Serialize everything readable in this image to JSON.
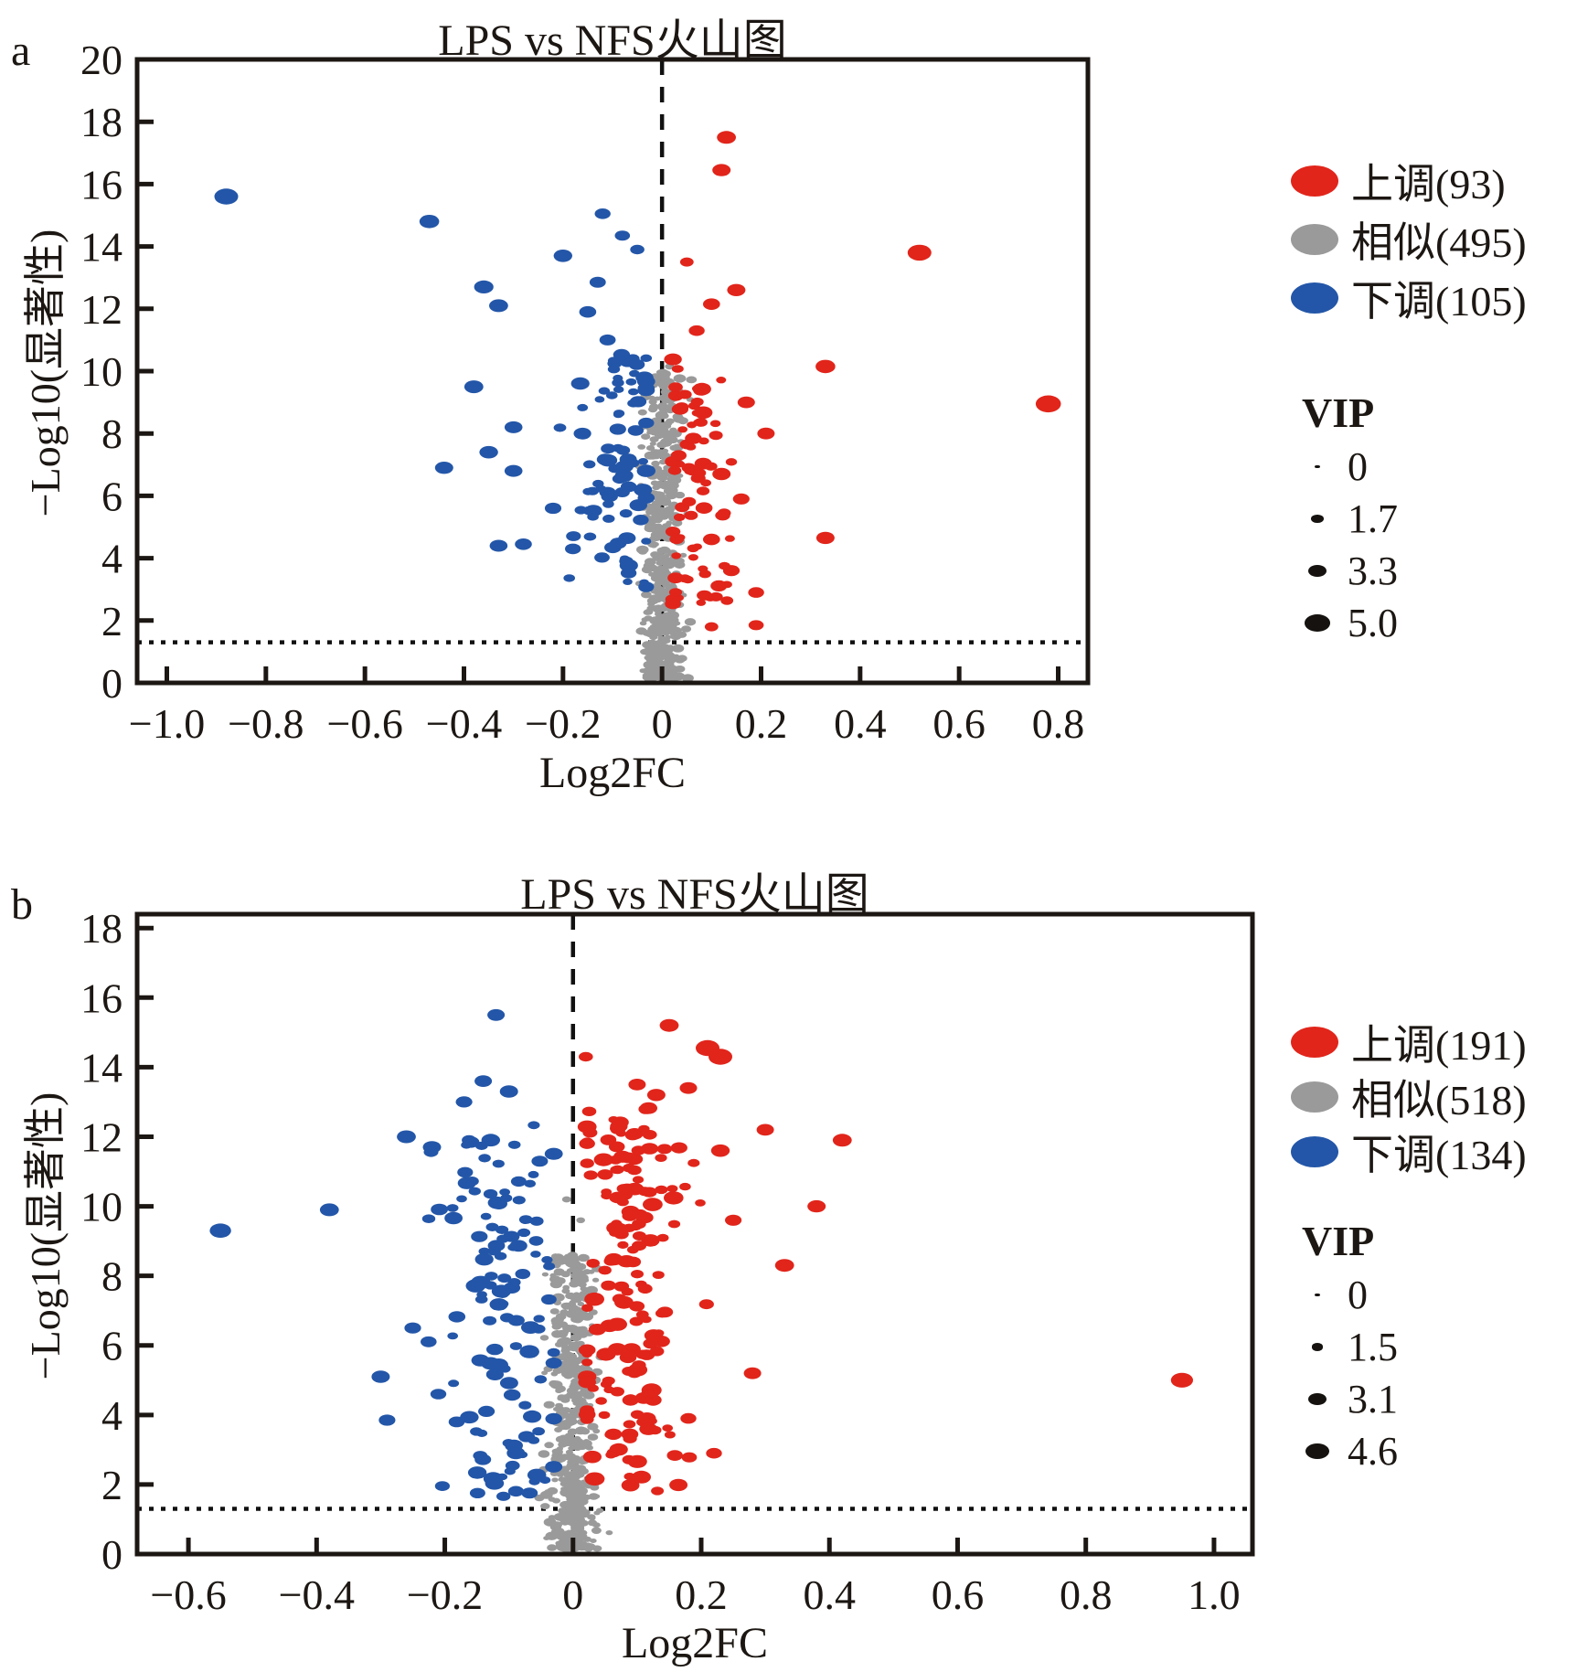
{
  "figure": {
    "panels": [
      {
        "panel_label": "a",
        "title": "LPS vs NFS火山图",
        "xlabel": "Log2FC",
        "ylabel": "−Log10(显著性)",
        "legend": {
          "items": [
            {
              "key": "up",
              "label": "上调(93)",
              "color": "#e1251b"
            },
            {
              "key": "similar",
              "label": "相似(495)",
              "color": "#9a9a9a"
            },
            {
              "key": "down",
              "label": "下调(105)",
              "color": "#2356a8"
            }
          ],
          "vip": {
            "title": "VIP",
            "levels": [
              {
                "label": "0",
                "value": 0
              },
              {
                "label": "1.7",
                "value": 1.7
              },
              {
                "label": "3.3",
                "value": 3.3
              },
              {
                "label": "5.0",
                "value": 5.0
              }
            ]
          }
        }
      },
      {
        "panel_label": "b",
        "title": "LPS vs NFS火山图",
        "xlabel": "Log2FC",
        "ylabel": "−Log10(显著性)",
        "legend": {
          "items": [
            {
              "key": "up",
              "label": "上调(191)",
              "color": "#e1251b"
            },
            {
              "key": "similar",
              "label": "相似(518)",
              "color": "#9a9a9a"
            },
            {
              "key": "down",
              "label": "下调(134)",
              "color": "#2356a8"
            }
          ],
          "vip": {
            "title": "VIP",
            "levels": [
              {
                "label": "0",
                "value": 0
              },
              {
                "label": "1.5",
                "value": 1.5
              },
              {
                "label": "3.1",
                "value": 3.1
              },
              {
                "label": "4.6",
                "value": 4.6
              }
            ]
          }
        }
      }
    ]
  },
  "chart_data": [
    {
      "panel": "a",
      "type": "scatter",
      "title": "LPS vs NFS火山图",
      "xlabel": "Log2FC",
      "ylabel": "−Log10(显著性)",
      "xlim": [
        -1.06,
        0.86
      ],
      "ylim": [
        0,
        20
      ],
      "xticks": [
        -1.0,
        -0.8,
        -0.6,
        -0.4,
        -0.2,
        0,
        0.2,
        0.4,
        0.6,
        0.8
      ],
      "xtick_labels": [
        "−1.0",
        "−0.8",
        "−0.6",
        "−0.4",
        "−0.2",
        "0",
        "0.2",
        "0.4",
        "0.6",
        "0.8"
      ],
      "yticks": [
        0,
        2,
        4,
        6,
        8,
        10,
        12,
        14,
        16,
        18,
        20
      ],
      "ytick_labels": [
        "0",
        "2",
        "4",
        "6",
        "8",
        "10",
        "12",
        "14",
        "16",
        "18",
        "20"
      ],
      "vline_x": 0,
      "hline_y": 1.3,
      "size_legend": {
        "title": "VIP",
        "values": [
          0,
          1.7,
          3.3,
          5.0
        ]
      },
      "series": [
        {
          "name": "上调",
          "count": 93,
          "color": "#e1251b",
          "points": [
            [
              0.13,
              17.5,
              3.4
            ],
            [
              0.12,
              16.45,
              3.2
            ],
            [
              0.52,
              13.8,
              4.6
            ],
            [
              0.78,
              8.95,
              5.0
            ],
            [
              0.33,
              10.15,
              3.6
            ],
            [
              0.33,
              4.65,
              3.2
            ],
            [
              0.05,
              13.5,
              2.0
            ],
            [
              0.15,
              12.6,
              3.2
            ],
            [
              0.1,
              12.15,
              2.9
            ],
            [
              0.07,
              11.3,
              2.6
            ],
            [
              0.17,
              9.0,
              3.0
            ],
            [
              0.21,
              8.0,
              3.0
            ],
            [
              0.12,
              6.7,
              3.2
            ],
            [
              0.16,
              5.9,
              2.8
            ],
            [
              0.1,
              4.6,
              2.9
            ],
            [
              0.14,
              3.6,
              2.8
            ],
            [
              0.19,
              2.9,
              2.6
            ],
            [
              0.19,
              1.85,
              2.4
            ],
            [
              0.1,
              1.8,
              2.0
            ]
          ],
          "cluster": {
            "count": 74,
            "cx": 0.065,
            "sx": 0.032,
            "xmin": 0.022,
            "xmax": 0.23,
            "ymin": 2.5,
            "ymax": 10.4,
            "ypow": 1.0,
            "vip": [
              1.0,
              3.3
            ]
          }
        },
        {
          "name": "相似",
          "count": 495,
          "color": "#9a9a9a",
          "points": [
            [
              0.015,
              10.15,
              0.9
            ]
          ],
          "cluster": {
            "count": 494,
            "cx": 0.002,
            "sx": 0.02,
            "xmin": -0.06,
            "xmax": 0.062,
            "ymin": 0.15,
            "ymax": 10.0,
            "ypow": 1.55,
            "vip": [
              0.2,
              1.8
            ]
          }
        },
        {
          "name": "下调",
          "count": 105,
          "color": "#2356a8",
          "points": [
            [
              -0.88,
              15.6,
              4.6
            ],
            [
              -0.47,
              14.8,
              3.6
            ],
            [
              -0.2,
              13.7,
              3.3
            ],
            [
              -0.36,
              12.7,
              3.5
            ],
            [
              -0.33,
              12.1,
              3.4
            ],
            [
              -0.15,
              11.9,
              2.9
            ],
            [
              -0.38,
              9.5,
              3.4
            ],
            [
              -0.3,
              8.2,
              3.1
            ],
            [
              -0.35,
              7.4,
              3.3
            ],
            [
              -0.3,
              6.8,
              3.1
            ],
            [
              -0.44,
              6.9,
              3.2
            ],
            [
              -0.33,
              4.4,
              3.1
            ],
            [
              -0.18,
              4.3,
              2.6
            ],
            [
              -0.28,
              4.45,
              2.9
            ],
            [
              -0.22,
              5.6,
              2.8
            ],
            [
              -0.12,
              15.05,
              2.6
            ],
            [
              -0.08,
              14.35,
              2.4
            ],
            [
              -0.05,
              13.9,
              2.2
            ],
            [
              -0.13,
              12.85,
              2.7
            ],
            [
              -0.11,
              11.0,
              2.7
            ],
            [
              -0.07,
              10.3,
              2.5
            ]
          ],
          "cluster": {
            "count": 84,
            "cx": -0.09,
            "sx": 0.045,
            "xmin": -0.26,
            "xmax": -0.032,
            "ymin": 2.9,
            "ymax": 10.6,
            "ypow": 1.0,
            "vip": [
              1.0,
              3.3
            ]
          }
        }
      ]
    },
    {
      "panel": "b",
      "type": "scatter",
      "title": "LPS vs NFS火山图",
      "xlabel": "Log2FC",
      "ylabel": "−Log10(显著性)",
      "xlim": [
        -0.68,
        1.06
      ],
      "ylim": [
        0,
        18.4
      ],
      "xticks": [
        -0.6,
        -0.4,
        -0.2,
        0,
        0.2,
        0.4,
        0.6,
        0.8,
        1.0
      ],
      "xtick_labels": [
        "−0.6",
        "−0.4",
        "−0.2",
        "0",
        "0.2",
        "0.4",
        "0.6",
        "0.8",
        "1.0"
      ],
      "yticks": [
        0,
        2,
        4,
        6,
        8,
        10,
        12,
        14,
        16,
        18
      ],
      "ytick_labels": [
        "0",
        "2",
        "4",
        "6",
        "8",
        "10",
        "12",
        "14",
        "16",
        "18"
      ],
      "vline_x": 0,
      "hline_y": 1.3,
      "size_legend": {
        "title": "VIP",
        "values": [
          0,
          1.5,
          3.1,
          4.6
        ]
      },
      "series": [
        {
          "name": "上调",
          "count": 191,
          "color": "#e1251b",
          "points": [
            [
              0.15,
              15.2,
              3.4
            ],
            [
              0.21,
              14.55,
              4.6
            ],
            [
              0.23,
              14.3,
              4.6
            ],
            [
              0.95,
              5.0,
              4.2
            ],
            [
              0.02,
              14.3,
              2.2
            ],
            [
              0.42,
              11.9,
              3.4
            ],
            [
              0.3,
              12.2,
              3.0
            ],
            [
              0.38,
              10.0,
              3.2
            ],
            [
              0.33,
              8.3,
              3.4
            ],
            [
              0.25,
              9.6,
              2.8
            ],
            [
              0.28,
              5.2,
              3.0
            ],
            [
              0.18,
              13.4,
              3.0
            ],
            [
              0.23,
              11.6,
              3.3
            ],
            [
              0.18,
              3.9,
              2.6
            ],
            [
              0.22,
              2.9,
              2.6
            ],
            [
              0.1,
              13.5,
              3.0
            ],
            [
              0.13,
              13.2,
              3.2
            ]
          ],
          "cluster": {
            "count": 174,
            "cx": 0.08,
            "sx": 0.045,
            "xmin": 0.022,
            "xmax": 0.27,
            "ymin": 1.8,
            "ymax": 13.0,
            "ypow": 0.95,
            "vip": [
              1.2,
              3.7
            ]
          }
        },
        {
          "name": "相似",
          "count": 518,
          "color": "#9a9a9a",
          "points": [
            [
              -0.01,
              10.2,
              0.9
            ],
            [
              0.012,
              9.6,
              0.8
            ]
          ],
          "cluster": {
            "count": 516,
            "cx": 0.0,
            "sx": 0.018,
            "xmin": -0.055,
            "xmax": 0.057,
            "ymin": 0.15,
            "ymax": 8.6,
            "ypow": 1.4,
            "vip": [
              0.2,
              1.8
            ]
          }
        },
        {
          "name": "下调",
          "count": 134,
          "color": "#2356a8",
          "points": [
            [
              -0.55,
              9.3,
              4.0
            ],
            [
              -0.38,
              9.9,
              3.4
            ],
            [
              -0.12,
              15.5,
              3.0
            ],
            [
              -0.14,
              13.6,
              3.0
            ],
            [
              -0.1,
              13.3,
              3.2
            ],
            [
              -0.26,
              12.0,
              3.4
            ],
            [
              -0.3,
              5.1,
              3.2
            ],
            [
              -0.29,
              3.85,
              2.8
            ],
            [
              -0.22,
              11.7,
              3.2
            ],
            [
              -0.25,
              6.5,
              2.8
            ],
            [
              -0.21,
              4.6,
              2.6
            ],
            [
              -0.17,
              13.0,
              2.8
            ]
          ],
          "cluster": {
            "count": 122,
            "cx": -0.105,
            "sx": 0.048,
            "xmin": -0.27,
            "xmax": -0.03,
            "ymin": 1.6,
            "ymax": 12.4,
            "ypow": 0.95,
            "vip": [
              1.2,
              3.6
            ]
          }
        }
      ]
    }
  ]
}
